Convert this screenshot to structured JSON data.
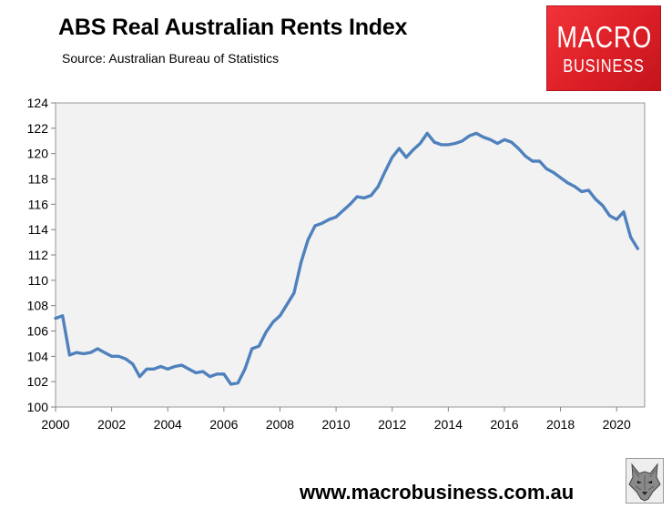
{
  "header": {
    "title": "ABS Real Australian Rents Index",
    "subtitle": "Source: Australian Bureau of Statistics"
  },
  "logo": {
    "line1": "MACRO",
    "line2": "BUSINESS",
    "color": "#e3262d"
  },
  "footer": {
    "url": "www.macrobusiness.com.au",
    "emblem_icon": "wolf-emblem-icon"
  },
  "chart_data": {
    "type": "line",
    "title": "ABS Real Australian Rents Index",
    "xlabel": "",
    "ylabel": "",
    "xlim": [
      2000,
      2021
    ],
    "ylim": [
      100,
      124
    ],
    "xticks": [
      "2000",
      "2002",
      "2004",
      "2006",
      "2008",
      "2010",
      "2012",
      "2014",
      "2016",
      "2018",
      "2020"
    ],
    "yticks": [
      "100",
      "102",
      "104",
      "106",
      "108",
      "110",
      "112",
      "114",
      "116",
      "118",
      "120",
      "122",
      "124"
    ],
    "grid": false,
    "plot_background": "#f2f2f2",
    "line_color": "#4f81bd",
    "series": [
      {
        "x": [
          2000.0,
          2000.25,
          2000.5,
          2000.75,
          2001.0,
          2001.25,
          2001.5,
          2001.75,
          2002.0,
          2002.25,
          2002.5,
          2002.75,
          2003.0,
          2003.25,
          2003.5,
          2003.75,
          2004.0,
          2004.25,
          2004.5,
          2004.75,
          2005.0,
          2005.25,
          2005.5,
          2005.75,
          2006.0,
          2006.25,
          2006.5,
          2006.75,
          2007.0,
          2007.25,
          2007.5,
          2007.75,
          2008.0,
          2008.25,
          2008.5,
          2008.75,
          2009.0,
          2009.25,
          2009.5,
          2009.75,
          2010.0,
          2010.25,
          2010.5,
          2010.75,
          2011.0,
          2011.25,
          2011.5,
          2011.75,
          2012.0,
          2012.25,
          2012.5,
          2012.75,
          2013.0,
          2013.25,
          2013.5,
          2013.75,
          2014.0,
          2014.25,
          2014.5,
          2014.75,
          2015.0,
          2015.25,
          2015.5,
          2015.75,
          2016.0,
          2016.25,
          2016.5,
          2016.75,
          2017.0,
          2017.25,
          2017.5,
          2017.75,
          2018.0,
          2018.25,
          2018.5,
          2018.75,
          2019.0,
          2019.25,
          2019.5,
          2019.75,
          2020.0,
          2020.25,
          2020.5,
          2020.75
        ],
        "y": [
          107.0,
          107.2,
          104.1,
          104.3,
          104.2,
          104.3,
          104.6,
          104.3,
          104.0,
          104.0,
          103.8,
          103.4,
          102.4,
          103.0,
          103.0,
          103.2,
          103.0,
          103.2,
          103.3,
          103.0,
          102.7,
          102.8,
          102.4,
          102.6,
          102.6,
          101.8,
          101.9,
          103.0,
          104.6,
          104.8,
          105.9,
          106.7,
          107.2,
          108.1,
          109.0,
          111.4,
          113.2,
          114.3,
          114.5,
          114.8,
          115.0,
          115.5,
          116.0,
          116.6,
          116.5,
          116.7,
          117.4,
          118.6,
          119.7,
          120.4,
          119.7,
          120.3,
          120.8,
          121.6,
          120.9,
          120.7,
          120.7,
          120.8,
          121.0,
          121.4,
          121.6,
          121.3,
          121.1,
          120.8,
          121.1,
          120.9,
          120.4,
          119.8,
          119.4,
          119.4,
          118.8,
          118.5,
          118.1,
          117.7,
          117.4,
          117.0,
          117.1,
          116.4,
          115.9,
          115.1,
          114.8,
          115.4,
          113.4,
          112.5
        ]
      }
    ]
  }
}
